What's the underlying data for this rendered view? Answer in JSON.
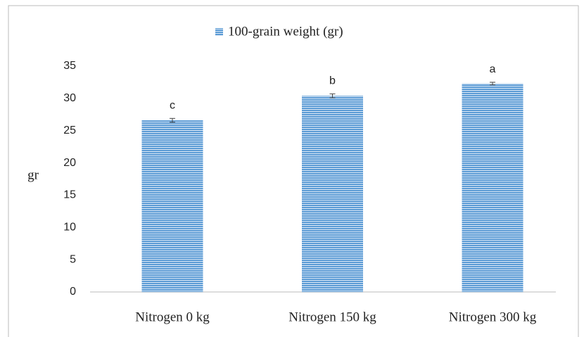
{
  "chart_data": {
    "type": "bar",
    "y_label": "gr",
    "categories": [
      "Nitrogen 0 kg",
      "Nitrogen 150 kg",
      "Nitrogen 300 kg"
    ],
    "series": [
      {
        "name": "100-grain weight (gr)",
        "color": "#5b9bd5",
        "values": [
          26.6,
          30.4,
          32.3
        ],
        "errors": [
          0.3,
          0.3,
          0.2
        ]
      }
    ],
    "annotations": [
      "c",
      "b",
      "a"
    ],
    "ylim": [
      0,
      35
    ],
    "yticks": [
      0,
      5,
      10,
      15,
      20,
      25,
      30,
      35
    ],
    "grid": false,
    "legend": "top"
  }
}
